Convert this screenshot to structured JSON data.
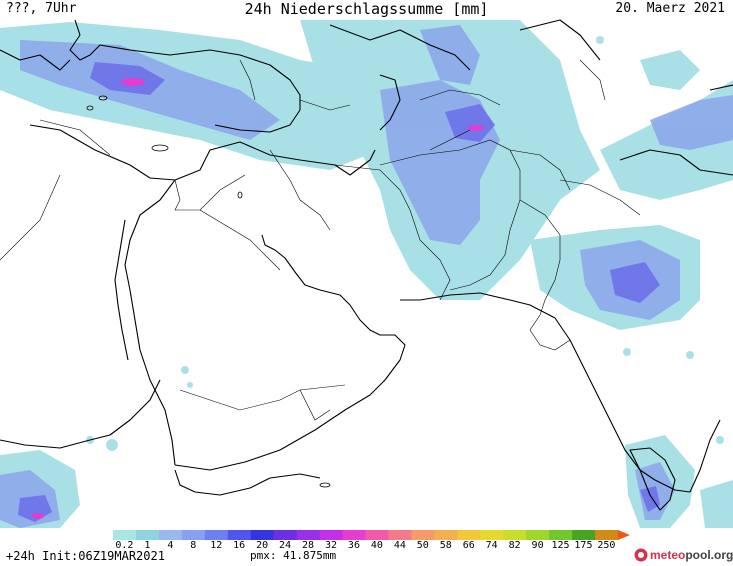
{
  "header": {
    "left": "???, 7Uhr",
    "title": "24h Niederschlagssumme [mm]",
    "date": "20. Maerz 2021"
  },
  "footer": {
    "lead": "+24h Init:06Z19MAR2021",
    "pmx": "pmx: 41.875mm"
  },
  "logo": {
    "part1": "meteo",
    "part2": "pool.org"
  },
  "legend": {
    "ticks": [
      "0.2",
      "1",
      "4",
      "8",
      "12",
      "16",
      "20",
      "24",
      "28",
      "32",
      "36",
      "40",
      "44",
      "50",
      "58",
      "66",
      "74",
      "82",
      "90",
      "125",
      "175",
      "250"
    ],
    "colors": [
      "#a8e6e6",
      "#8fd3e0",
      "#9ab8ec",
      "#8a9ff0",
      "#6f7ff0",
      "#4f56ec",
      "#3535e0",
      "#6b2fe4",
      "#9a2fe8",
      "#c22fe6",
      "#e63cd2",
      "#f05aa8",
      "#f47a8a",
      "#f59a6a",
      "#f4b04e",
      "#f2c83a",
      "#e6d92e",
      "#c8de2a",
      "#9fd62a",
      "#72c82a",
      "#4aa424",
      "#d48a16"
    ],
    "overflow_color": "#e85a1a"
  },
  "colors": {
    "light": "#9fdde4",
    "mid": "#8da8ea",
    "strong": "#6f74e8",
    "core": "#4a4ed6",
    "hot": "#e23cd0"
  }
}
